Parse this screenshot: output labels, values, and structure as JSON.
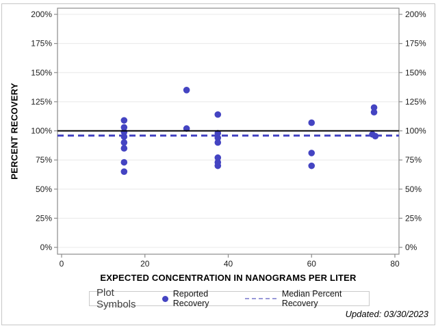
{
  "figure": {
    "footnote": "Updated: 03/30/2023"
  },
  "legend": {
    "title": "Plot Symbols",
    "scatter_label": "Reported Recovery",
    "median_label": "Median Percent Recovery"
  },
  "chart_data": {
    "type": "scatter",
    "title": "",
    "xlabel": "EXPECTED CONCENTRATION IN NANOGRAMS PER LITER",
    "ylabel": "PERCENT RECOVERY",
    "xlim": [
      0,
      80
    ],
    "ylim_pct": [
      0,
      200
    ],
    "x_ticks": [
      0,
      20,
      40,
      60,
      80
    ],
    "y_ticks_pct": [
      0,
      25,
      50,
      75,
      100,
      125,
      150,
      175,
      200
    ],
    "y_tick_labels": [
      "0%",
      "25%",
      "50%",
      "75%",
      "100%",
      "125%",
      "150%",
      "175%",
      "200%"
    ],
    "grid": "horizontal-only",
    "legend_position": "bottom",
    "marker_color": "#4444c2",
    "median_line_color": "#4444c2",
    "reference_line_color": "#000000",
    "series": [
      {
        "name": "Reported Recovery",
        "type": "scatter",
        "points": [
          [
            15,
            109
          ],
          [
            15,
            103
          ],
          [
            15,
            99
          ],
          [
            15,
            95
          ],
          [
            15,
            90
          ],
          [
            15,
            85
          ],
          [
            15,
            73
          ],
          [
            15,
            65
          ],
          [
            30,
            135
          ],
          [
            30,
            102
          ],
          [
            37.5,
            114
          ],
          [
            37.5,
            98
          ],
          [
            37.5,
            94
          ],
          [
            37.5,
            90
          ],
          [
            37.5,
            77
          ],
          [
            37.5,
            73
          ],
          [
            37.5,
            70
          ],
          [
            60,
            107
          ],
          [
            60,
            81
          ],
          [
            60,
            70
          ],
          [
            75,
            120
          ],
          [
            75,
            116
          ],
          [
            74.6,
            97
          ],
          [
            75.3,
            95.5
          ]
        ]
      },
      {
        "name": "Median Percent Recovery",
        "type": "refline",
        "style": "dashed",
        "value_pct": 96
      },
      {
        "name": "100 Percent Reference",
        "type": "refline",
        "style": "solid",
        "value_pct": 100
      }
    ]
  }
}
